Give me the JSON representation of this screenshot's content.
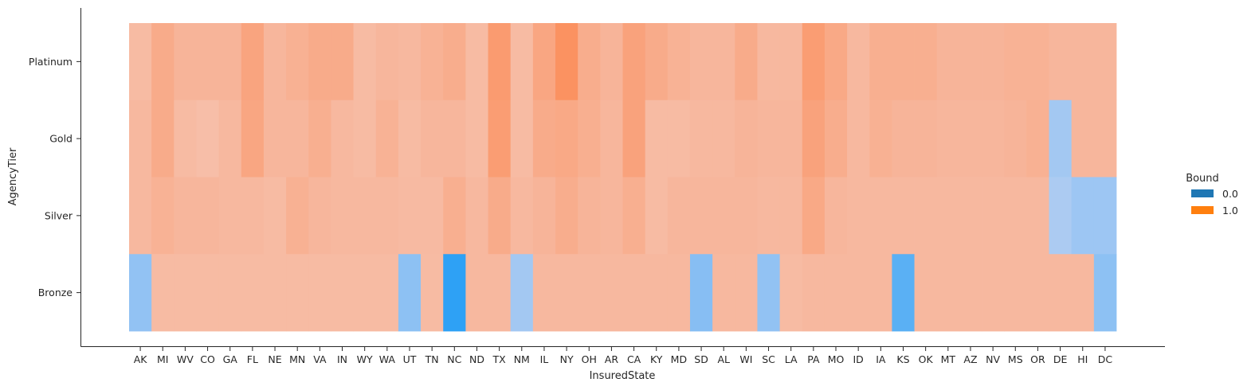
{
  "chart_data": {
    "type": "heatmap",
    "title": "",
    "xlabel": "InsuredState",
    "ylabel": "AgencyTier",
    "x_categories": [
      "AK",
      "MI",
      "WV",
      "CO",
      "GA",
      "FL",
      "NE",
      "MN",
      "VA",
      "IN",
      "WY",
      "WA",
      "UT",
      "TN",
      "NC",
      "ND",
      "TX",
      "NM",
      "IL",
      "NY",
      "OH",
      "AR",
      "CA",
      "KY",
      "MD",
      "SD",
      "AL",
      "WI",
      "SC",
      "LA",
      "PA",
      "MO",
      "ID",
      "IA",
      "KS",
      "OK",
      "MT",
      "AZ",
      "NV",
      "MS",
      "OR",
      "DE",
      "HI",
      "DC"
    ],
    "y_categories": [
      "Platinum",
      "Gold",
      "Silver",
      "Bronze"
    ],
    "legend": {
      "title": "Bound",
      "placement": "right",
      "entries": [
        {
          "label": "0.0",
          "color": "#1f77b4"
        },
        {
          "label": "1.0",
          "color": "#ff7f0e"
        }
      ]
    },
    "colors": {
      "bound_0": "#1f77b4",
      "bound_1": "#ff7f0e",
      "light_orange": "#f4b7a2",
      "light_blue": "#a7c6f0"
    },
    "cells": {
      "Platinum": [
        {
          "bound": 1,
          "intensity": 0.45
        },
        {
          "bound": 1,
          "intensity": 0.62
        },
        {
          "bound": 1,
          "intensity": 0.52
        },
        {
          "bound": 1,
          "intensity": 0.52
        },
        {
          "bound": 1,
          "intensity": 0.52
        },
        {
          "bound": 1,
          "intensity": 0.7
        },
        {
          "bound": 1,
          "intensity": 0.5
        },
        {
          "bound": 1,
          "intensity": 0.56
        },
        {
          "bound": 1,
          "intensity": 0.62
        },
        {
          "bound": 1,
          "intensity": 0.62
        },
        {
          "bound": 1,
          "intensity": 0.45
        },
        {
          "bound": 1,
          "intensity": 0.5
        },
        {
          "bound": 1,
          "intensity": 0.48
        },
        {
          "bound": 1,
          "intensity": 0.55
        },
        {
          "bound": 1,
          "intensity": 0.6
        },
        {
          "bound": 1,
          "intensity": 0.45
        },
        {
          "bound": 1,
          "intensity": 0.8
        },
        {
          "bound": 1,
          "intensity": 0.45
        },
        {
          "bound": 1,
          "intensity": 0.68
        },
        {
          "bound": 1,
          "intensity": 0.9
        },
        {
          "bound": 1,
          "intensity": 0.6
        },
        {
          "bound": 1,
          "intensity": 0.52
        },
        {
          "bound": 1,
          "intensity": 0.72
        },
        {
          "bound": 1,
          "intensity": 0.62
        },
        {
          "bound": 1,
          "intensity": 0.55
        },
        {
          "bound": 1,
          "intensity": 0.5
        },
        {
          "bound": 1,
          "intensity": 0.5
        },
        {
          "bound": 1,
          "intensity": 0.62
        },
        {
          "bound": 1,
          "intensity": 0.48
        },
        {
          "bound": 1,
          "intensity": 0.48
        },
        {
          "bound": 1,
          "intensity": 0.78
        },
        {
          "bound": 1,
          "intensity": 0.65
        },
        {
          "bound": 1,
          "intensity": 0.48
        },
        {
          "bound": 1,
          "intensity": 0.58
        },
        {
          "bound": 1,
          "intensity": 0.58
        },
        {
          "bound": 1,
          "intensity": 0.58
        },
        {
          "bound": 1,
          "intensity": 0.52
        },
        {
          "bound": 1,
          "intensity": 0.52
        },
        {
          "bound": 1,
          "intensity": 0.52
        },
        {
          "bound": 1,
          "intensity": 0.55
        },
        {
          "bound": 1,
          "intensity": 0.55
        },
        {
          "bound": 1,
          "intensity": 0.5
        },
        {
          "bound": 1,
          "intensity": 0.5
        },
        {
          "bound": 1,
          "intensity": 0.5
        }
      ],
      "Gold": [
        {
          "bound": 1,
          "intensity": 0.48
        },
        {
          "bound": 1,
          "intensity": 0.62
        },
        {
          "bound": 1,
          "intensity": 0.45
        },
        {
          "bound": 1,
          "intensity": 0.42
        },
        {
          "bound": 1,
          "intensity": 0.48
        },
        {
          "bound": 1,
          "intensity": 0.68
        },
        {
          "bound": 1,
          "intensity": 0.5
        },
        {
          "bound": 1,
          "intensity": 0.5
        },
        {
          "bound": 1,
          "intensity": 0.58
        },
        {
          "bound": 1,
          "intensity": 0.48
        },
        {
          "bound": 1,
          "intensity": 0.45
        },
        {
          "bound": 1,
          "intensity": 0.55
        },
        {
          "bound": 1,
          "intensity": 0.45
        },
        {
          "bound": 1,
          "intensity": 0.5
        },
        {
          "bound": 1,
          "intensity": 0.5
        },
        {
          "bound": 1,
          "intensity": 0.45
        },
        {
          "bound": 1,
          "intensity": 0.78
        },
        {
          "bound": 1,
          "intensity": 0.45
        },
        {
          "bound": 1,
          "intensity": 0.62
        },
        {
          "bound": 1,
          "intensity": 0.65
        },
        {
          "bound": 1,
          "intensity": 0.58
        },
        {
          "bound": 1,
          "intensity": 0.5
        },
        {
          "bound": 1,
          "intensity": 0.72
        },
        {
          "bound": 1,
          "intensity": 0.45
        },
        {
          "bound": 1,
          "intensity": 0.45
        },
        {
          "bound": 1,
          "intensity": 0.48
        },
        {
          "bound": 1,
          "intensity": 0.48
        },
        {
          "bound": 1,
          "intensity": 0.52
        },
        {
          "bound": 1,
          "intensity": 0.5
        },
        {
          "bound": 1,
          "intensity": 0.5
        },
        {
          "bound": 1,
          "intensity": 0.72
        },
        {
          "bound": 1,
          "intensity": 0.6
        },
        {
          "bound": 1,
          "intensity": 0.48
        },
        {
          "bound": 1,
          "intensity": 0.56
        },
        {
          "bound": 1,
          "intensity": 0.52
        },
        {
          "bound": 1,
          "intensity": 0.52
        },
        {
          "bound": 1,
          "intensity": 0.5
        },
        {
          "bound": 1,
          "intensity": 0.5
        },
        {
          "bound": 1,
          "intensity": 0.5
        },
        {
          "bound": 1,
          "intensity": 0.52
        },
        {
          "bound": 1,
          "intensity": 0.56
        },
        {
          "bound": 0,
          "intensity": 0.42
        },
        {
          "bound": 1,
          "intensity": 0.5
        },
        {
          "bound": 1,
          "intensity": 0.5
        }
      ],
      "Silver": [
        {
          "bound": 1,
          "intensity": 0.48
        },
        {
          "bound": 1,
          "intensity": 0.55
        },
        {
          "bound": 1,
          "intensity": 0.5
        },
        {
          "bound": 1,
          "intensity": 0.5
        },
        {
          "bound": 1,
          "intensity": 0.48
        },
        {
          "bound": 1,
          "intensity": 0.48
        },
        {
          "bound": 1,
          "intensity": 0.45
        },
        {
          "bound": 1,
          "intensity": 0.56
        },
        {
          "bound": 1,
          "intensity": 0.5
        },
        {
          "bound": 1,
          "intensity": 0.48
        },
        {
          "bound": 1,
          "intensity": 0.48
        },
        {
          "bound": 1,
          "intensity": 0.48
        },
        {
          "bound": 1,
          "intensity": 0.46
        },
        {
          "bound": 1,
          "intensity": 0.46
        },
        {
          "bound": 1,
          "intensity": 0.58
        },
        {
          "bound": 1,
          "intensity": 0.48
        },
        {
          "bound": 1,
          "intensity": 0.62
        },
        {
          "bound": 1,
          "intensity": 0.48
        },
        {
          "bound": 1,
          "intensity": 0.52
        },
        {
          "bound": 1,
          "intensity": 0.6
        },
        {
          "bound": 1,
          "intensity": 0.52
        },
        {
          "bound": 1,
          "intensity": 0.5
        },
        {
          "bound": 1,
          "intensity": 0.58
        },
        {
          "bound": 1,
          "intensity": 0.45
        },
        {
          "bound": 1,
          "intensity": 0.5
        },
        {
          "bound": 1,
          "intensity": 0.5
        },
        {
          "bound": 1,
          "intensity": 0.5
        },
        {
          "bound": 1,
          "intensity": 0.5
        },
        {
          "bound": 1,
          "intensity": 0.48
        },
        {
          "bound": 1,
          "intensity": 0.48
        },
        {
          "bound": 1,
          "intensity": 0.65
        },
        {
          "bound": 1,
          "intensity": 0.5
        },
        {
          "bound": 1,
          "intensity": 0.48
        },
        {
          "bound": 1,
          "intensity": 0.48
        },
        {
          "bound": 1,
          "intensity": 0.48
        },
        {
          "bound": 1,
          "intensity": 0.48
        },
        {
          "bound": 1,
          "intensity": 0.48
        },
        {
          "bound": 1,
          "intensity": 0.48
        },
        {
          "bound": 1,
          "intensity": 0.48
        },
        {
          "bound": 1,
          "intensity": 0.48
        },
        {
          "bound": 1,
          "intensity": 0.48
        },
        {
          "bound": 0,
          "intensity": 0.38
        },
        {
          "bound": 0,
          "intensity": 0.45
        },
        {
          "bound": 0,
          "intensity": 0.45
        }
      ],
      "Bronze": [
        {
          "bound": 0,
          "intensity": 0.5
        },
        {
          "bound": 1,
          "intensity": 0.45
        },
        {
          "bound": 1,
          "intensity": 0.45
        },
        {
          "bound": 1,
          "intensity": 0.45
        },
        {
          "bound": 1,
          "intensity": 0.45
        },
        {
          "bound": 1,
          "intensity": 0.45
        },
        {
          "bound": 1,
          "intensity": 0.45
        },
        {
          "bound": 1,
          "intensity": 0.45
        },
        {
          "bound": 1,
          "intensity": 0.45
        },
        {
          "bound": 1,
          "intensity": 0.45
        },
        {
          "bound": 1,
          "intensity": 0.45
        },
        {
          "bound": 1,
          "intensity": 0.45
        },
        {
          "bound": 0,
          "intensity": 0.52
        },
        {
          "bound": 1,
          "intensity": 0.45
        },
        {
          "bound": 0,
          "intensity": 0.95
        },
        {
          "bound": 1,
          "intensity": 0.48
        },
        {
          "bound": 1,
          "intensity": 0.48
        },
        {
          "bound": 0,
          "intensity": 0.42
        },
        {
          "bound": 1,
          "intensity": 0.48
        },
        {
          "bound": 1,
          "intensity": 0.48
        },
        {
          "bound": 1,
          "intensity": 0.48
        },
        {
          "bound": 1,
          "intensity": 0.48
        },
        {
          "bound": 1,
          "intensity": 0.48
        },
        {
          "bound": 1,
          "intensity": 0.48
        },
        {
          "bound": 1,
          "intensity": 0.48
        },
        {
          "bound": 0,
          "intensity": 0.55
        },
        {
          "bound": 1,
          "intensity": 0.48
        },
        {
          "bound": 1,
          "intensity": 0.48
        },
        {
          "bound": 0,
          "intensity": 0.5
        },
        {
          "bound": 1,
          "intensity": 0.45
        },
        {
          "bound": 1,
          "intensity": 0.48
        },
        {
          "bound": 1,
          "intensity": 0.48
        },
        {
          "bound": 1,
          "intensity": 0.48
        },
        {
          "bound": 1,
          "intensity": 0.48
        },
        {
          "bound": 0,
          "intensity": 0.75
        },
        {
          "bound": 1,
          "intensity": 0.48
        },
        {
          "bound": 1,
          "intensity": 0.48
        },
        {
          "bound": 1,
          "intensity": 0.48
        },
        {
          "bound": 1,
          "intensity": 0.48
        },
        {
          "bound": 1,
          "intensity": 0.48
        },
        {
          "bound": 1,
          "intensity": 0.48
        },
        {
          "bound": 1,
          "intensity": 0.48
        },
        {
          "bound": 1,
          "intensity": 0.48
        },
        {
          "bound": 0,
          "intensity": 0.52
        }
      ]
    }
  }
}
